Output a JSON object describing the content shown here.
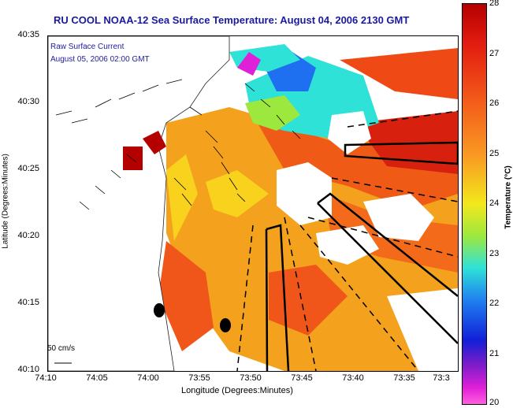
{
  "title": "RU COOL  NOAA-12  Sea Surface Temperature:  August 04, 2006 2130 GMT",
  "overlay": {
    "line1": "Raw Surface Current",
    "line2": "August 05, 2006 02:00 GMT",
    "scale_label": "50 cm/s"
  },
  "axes": {
    "x_label": "Longitude (Degrees:Minutes)",
    "y_label": "Latitude (Degrees:Minutes)",
    "x_ticks": [
      "74:10",
      "74:05",
      "74:00",
      "73:55",
      "73:50",
      "73:45",
      "73:40",
      "73:35",
      "73:3"
    ],
    "y_ticks": [
      "40:35",
      "40:30",
      "40:25",
      "40:20",
      "40:15",
      "40:10"
    ]
  },
  "colorbar": {
    "title": "Temperature (°C)",
    "ticks": [
      "28",
      "27",
      "26",
      "25",
      "24",
      "23",
      "22",
      "21",
      "20"
    ],
    "min": 20,
    "max": 28
  }
}
